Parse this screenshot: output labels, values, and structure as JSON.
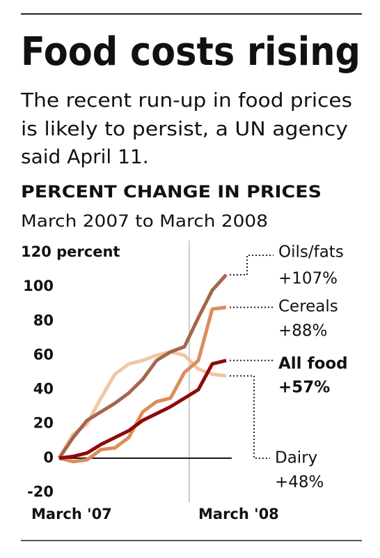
{
  "chart_data": {
    "type": "line",
    "title": "Food costs rising",
    "subtitle": [
      "The recent run-up in food prices",
      "is likely to persist, a UN agency",
      "said April 11."
    ],
    "chart_title": "PERCENT CHANGE IN PRICES",
    "chart_subtitle": "March 2007 to March 2008",
    "categories": [
      "March '07",
      null,
      null,
      null,
      null,
      null,
      null,
      null,
      null,
      null,
      null,
      null,
      "March '08"
    ],
    "ylim": [
      -20,
      120
    ],
    "yticks": [
      -20,
      0,
      20,
      40,
      60,
      80,
      100,
      {
        "value": 120,
        "label": "120 percent"
      }
    ],
    "series": [
      {
        "name": "Dairy",
        "end_label": "+48%",
        "color": "#f0c6a4",
        "values": [
          0,
          14,
          20,
          35,
          49,
          55,
          57,
          60,
          62,
          60,
          52,
          49,
          48
        ]
      },
      {
        "name": "Oils/fats",
        "end_label": "+107%",
        "color": "#a5664c",
        "values": [
          0,
          12,
          22,
          27,
          32,
          38,
          46,
          57,
          62,
          65,
          82,
          98,
          107
        ]
      },
      {
        "name": "Cereals",
        "end_label": "+88%",
        "color": "#dc8d5a",
        "values": [
          0,
          -2,
          -1,
          5,
          6,
          12,
          27,
          33,
          35,
          50,
          57,
          87,
          88
        ]
      },
      {
        "name": "All food",
        "end_label": "+57%",
        "color": "#8e0a0a",
        "values": [
          0,
          1,
          3,
          8,
          12,
          16,
          22,
          26,
          30,
          35,
          40,
          55,
          57
        ]
      }
    ]
  }
}
